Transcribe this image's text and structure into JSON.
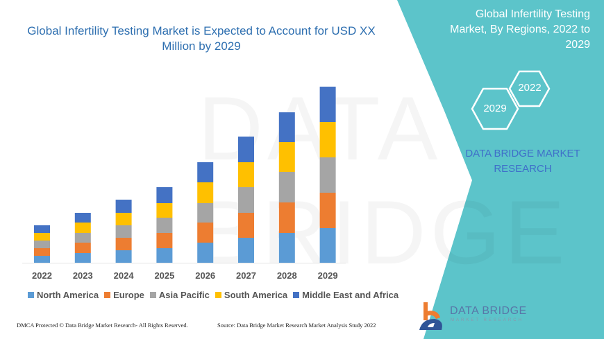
{
  "title": "Global Infertility Testing Market is Expected to Account for USD XX Million by 2029",
  "side_panel": {
    "title": "Global Infertility Testing Market, By Regions, 2022 to 2029",
    "hex_labels": [
      "2022",
      "2029"
    ],
    "brand": "DATA BRIDGE MARKET RESEARCH",
    "color": "#5cc4ca"
  },
  "watermark": "DATA BRIDGE",
  "logo": {
    "name": "DATA BRIDGE",
    "sub": "MARKET RESEARCH"
  },
  "footer": {
    "left": "DMCA Protected © Data Bridge Market Research- All Rights Reserved.",
    "right": "Source: Data Bridge Market Research Market Analysis Study 2022"
  },
  "chart_data": {
    "type": "bar",
    "stacked": true,
    "title": "Global Infertility Testing Market is Expected to Account for USD XX Million by 2029",
    "xlabel": "",
    "ylabel": "",
    "y_axis_shown": false,
    "grid": false,
    "legend_position": "bottom",
    "categories": [
      "2022",
      "2023",
      "2024",
      "2025",
      "2026",
      "2027",
      "2028",
      "2029"
    ],
    "series": [
      {
        "name": "North America",
        "color": "#5b9bd5",
        "values": [
          10,
          14,
          18,
          21,
          29,
          36,
          43,
          50
        ]
      },
      {
        "name": "Europe",
        "color": "#ed7d31",
        "values": [
          11,
          15,
          18,
          22,
          29,
          36,
          44,
          51
        ]
      },
      {
        "name": "Asia Pacific",
        "color": "#a5a5a5",
        "values": [
          11,
          14,
          18,
          22,
          28,
          37,
          44,
          51
        ]
      },
      {
        "name": "South America",
        "color": "#ffc000",
        "values": [
          11,
          15,
          18,
          21,
          30,
          36,
          43,
          51
        ]
      },
      {
        "name": "Middle East and Africa",
        "color": "#4472c4",
        "values": [
          11,
          14,
          19,
          23,
          29,
          37,
          43,
          51
        ]
      }
    ]
  }
}
